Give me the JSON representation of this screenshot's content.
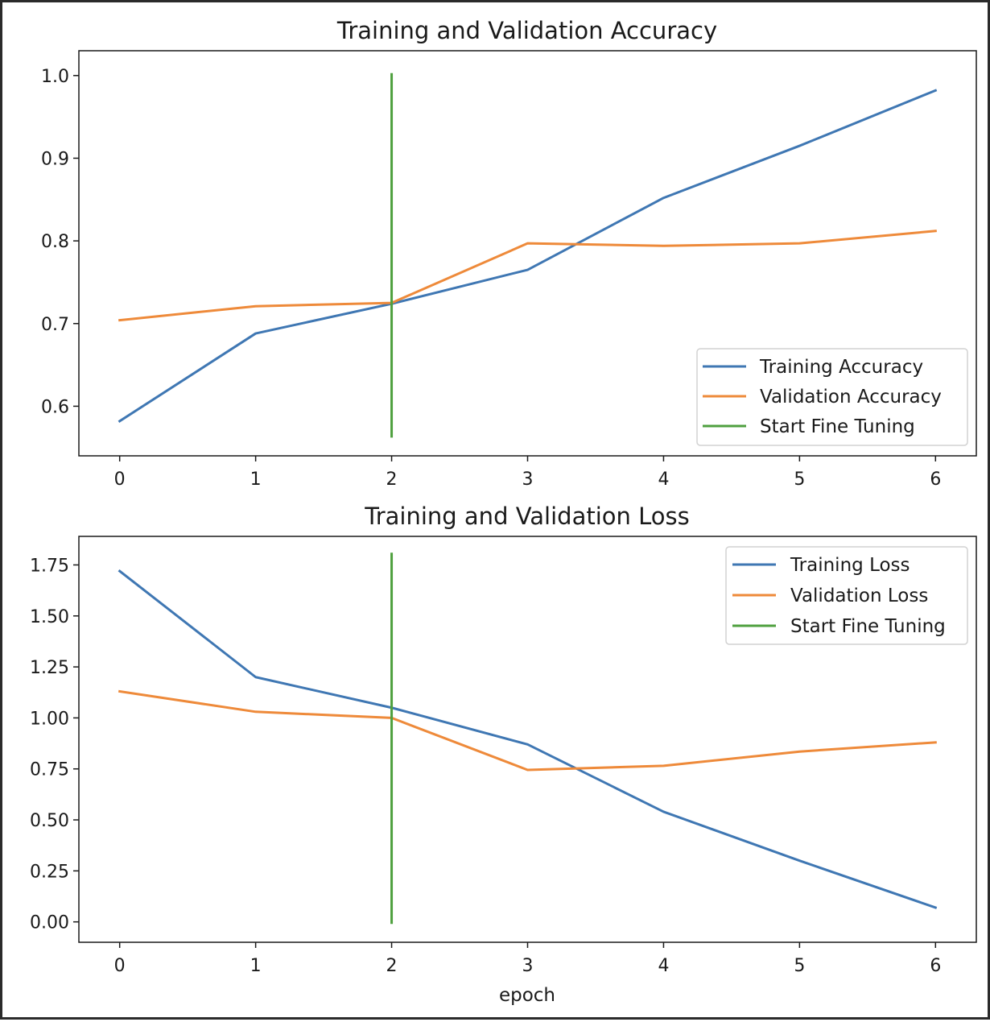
{
  "chart_data": [
    {
      "type": "line",
      "title": "Training and Validation Accuracy",
      "xlabel": "",
      "ylabel": "",
      "x": [
        0,
        1,
        2,
        3,
        4,
        5,
        6
      ],
      "xticks": [
        "0",
        "1",
        "2",
        "3",
        "4",
        "5",
        "6"
      ],
      "xlim": [
        -0.3,
        6.3
      ],
      "yticks": [
        0.6,
        0.7,
        0.8,
        0.9,
        1.0
      ],
      "ytick_labels": [
        "0.6",
        "0.7",
        "0.8",
        "0.9",
        "1.0"
      ],
      "ylim": [
        0.54,
        1.03
      ],
      "series": [
        {
          "name": "Training Accuracy",
          "color": "#3f77b3",
          "values": [
            0.582,
            0.688,
            0.724,
            0.765,
            0.852,
            0.915,
            0.982
          ]
        },
        {
          "name": "Validation Accuracy",
          "color": "#ee8a3a",
          "values": [
            0.704,
            0.721,
            0.725,
            0.797,
            0.794,
            0.797,
            0.812
          ]
        }
      ],
      "vline": {
        "name": "Start Fine Tuning",
        "color": "#4fa03f",
        "x": 2,
        "y": [
          0.562,
          1.003
        ]
      },
      "legend": {
        "placement": "lower-right",
        "entries": [
          "Training Accuracy",
          "Validation Accuracy",
          "Start Fine Tuning"
        ]
      },
      "grid": false
    },
    {
      "type": "line",
      "title": "Training and Validation Loss",
      "xlabel": "epoch",
      "ylabel": "",
      "x": [
        0,
        1,
        2,
        3,
        4,
        5,
        6
      ],
      "xticks": [
        "0",
        "1",
        "2",
        "3",
        "4",
        "5",
        "6"
      ],
      "xlim": [
        -0.3,
        6.3
      ],
      "yticks": [
        0.0,
        0.25,
        0.5,
        0.75,
        1.0,
        1.25,
        1.5,
        1.75
      ],
      "ytick_labels": [
        "0.00",
        "0.25",
        "0.50",
        "0.75",
        "1.00",
        "1.25",
        "1.50",
        "1.75"
      ],
      "ylim": [
        -0.1,
        1.89
      ],
      "series": [
        {
          "name": "Training Loss",
          "color": "#3f77b3",
          "values": [
            1.72,
            1.2,
            1.05,
            0.87,
            0.54,
            0.3,
            0.07
          ]
        },
        {
          "name": "Validation Loss",
          "color": "#ee8a3a",
          "values": [
            1.13,
            1.03,
            1.0,
            0.745,
            0.765,
            0.835,
            0.88
          ]
        }
      ],
      "vline": {
        "name": "Start Fine Tuning",
        "color": "#4fa03f",
        "x": 2,
        "y": [
          -0.01,
          1.81
        ]
      },
      "legend": {
        "placement": "upper-right",
        "entries": [
          "Training Loss",
          "Validation Loss",
          "Start Fine Tuning"
        ]
      },
      "grid": false
    }
  ]
}
